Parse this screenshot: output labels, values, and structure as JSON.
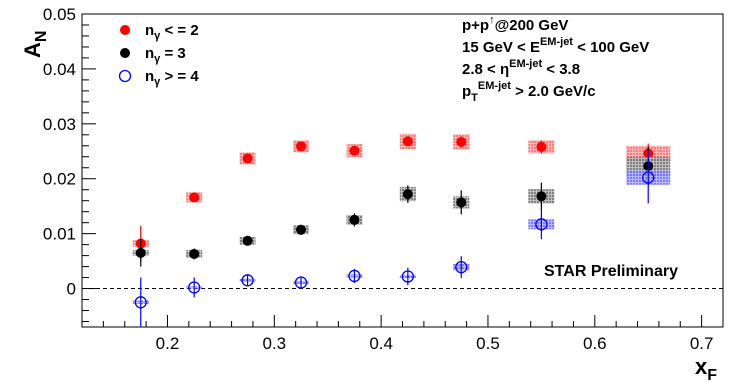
{
  "chart_data": {
    "type": "scatter",
    "xlabel": "x",
    "xlabel_sub": "F",
    "ylabel": "A",
    "ylabel_sub": "N",
    "xlim": [
      0.12,
      0.72
    ],
    "ylim": [
      -0.007,
      0.05
    ],
    "x_ticks": [
      0.2,
      0.3,
      0.4,
      0.5,
      0.6,
      0.7
    ],
    "x_tick_labels": [
      "0.2",
      "0.3",
      "0.4",
      "0.5",
      "0.6",
      "0.7"
    ],
    "y_ticks": [
      0,
      0.01,
      0.02,
      0.03,
      0.04,
      0.05
    ],
    "y_tick_labels": [
      "0",
      "0.01",
      "0.02",
      "0.03",
      "0.04",
      "0.05"
    ],
    "zero_line": "dashed",
    "legend_position": "top-left",
    "series": [
      {
        "name": "n<sub>γ</sub> < = 2",
        "name_parts": {
          "main": "n",
          "sub": "γ",
          "rest": " < = 2"
        },
        "color": "#ff0000",
        "marker": "filled-circle",
        "x": [
          0.175,
          0.225,
          0.275,
          0.325,
          0.375,
          0.425,
          0.475,
          0.55,
          0.65
        ],
        "y": [
          0.0082,
          0.0166,
          0.0237,
          0.0259,
          0.0251,
          0.0268,
          0.0267,
          0.0258,
          0.0246
        ],
        "stat_err": [
          0.0032,
          0.0006,
          0.0008,
          0.0008,
          0.0009,
          0.0009,
          0.001,
          0.0012,
          0.0018
        ],
        "sys_err": [
          0.0006,
          0.0009,
          0.0011,
          0.0011,
          0.0012,
          0.0014,
          0.0014,
          0.0012,
          0.0014
        ]
      },
      {
        "name": "n<sub>γ</sub> = 3",
        "name_parts": {
          "main": "n",
          "sub": "γ",
          "rest": "   = 3"
        },
        "color": "#000000",
        "marker": "filled-circle",
        "x": [
          0.175,
          0.225,
          0.275,
          0.325,
          0.375,
          0.425,
          0.475,
          0.55,
          0.65
        ],
        "y": [
          0.0065,
          0.0063,
          0.0087,
          0.0107,
          0.0125,
          0.0172,
          0.0157,
          0.0168,
          0.0223
        ],
        "stat_err": [
          0.0025,
          0.001,
          0.0007,
          0.0009,
          0.0012,
          0.0016,
          0.0022,
          0.0025,
          0.0035
        ],
        "sys_err": [
          0.0005,
          0.0007,
          0.0007,
          0.0008,
          0.0009,
          0.0013,
          0.0011,
          0.0013,
          0.0017
        ]
      },
      {
        "name": "n<sub>γ</sub> > = 4",
        "name_parts": {
          "main": "n",
          "sub": "γ",
          "rest": " > = 4"
        },
        "color": "#0000ff",
        "marker": "open-circle",
        "x": [
          0.175,
          0.225,
          0.275,
          0.325,
          0.375,
          0.425,
          0.475,
          0.55,
          0.65
        ],
        "y": [
          -0.0025,
          0.0002,
          0.0015,
          0.0011,
          0.0023,
          0.0022,
          0.0039,
          0.0117,
          0.0202
        ],
        "stat_err": [
          0.0045,
          0.0018,
          0.0009,
          0.0009,
          0.0013,
          0.0016,
          0.002,
          0.0027,
          0.0047
        ],
        "sys_err": [
          0.0003,
          0.0002,
          0.0003,
          0.0003,
          0.0003,
          0.0003,
          0.0006,
          0.0009,
          0.0013
        ]
      }
    ],
    "annotations": {
      "info_lines": [
        {
          "main": "p+p",
          "sup": "↑",
          "rest": "@200 GeV"
        },
        {
          "main": "15 GeV < E",
          "sup": "EM-jet",
          "rest": " < 100 GeV"
        },
        {
          "main": "2.8 < η",
          "sup": "EM-jet",
          "rest": " < 3.8"
        },
        {
          "main": "p",
          "sub": "T",
          "sup": "EM-jet",
          "rest": " > 2.0 GeV/c"
        }
      ],
      "preliminary": "STAR Preliminary"
    }
  }
}
